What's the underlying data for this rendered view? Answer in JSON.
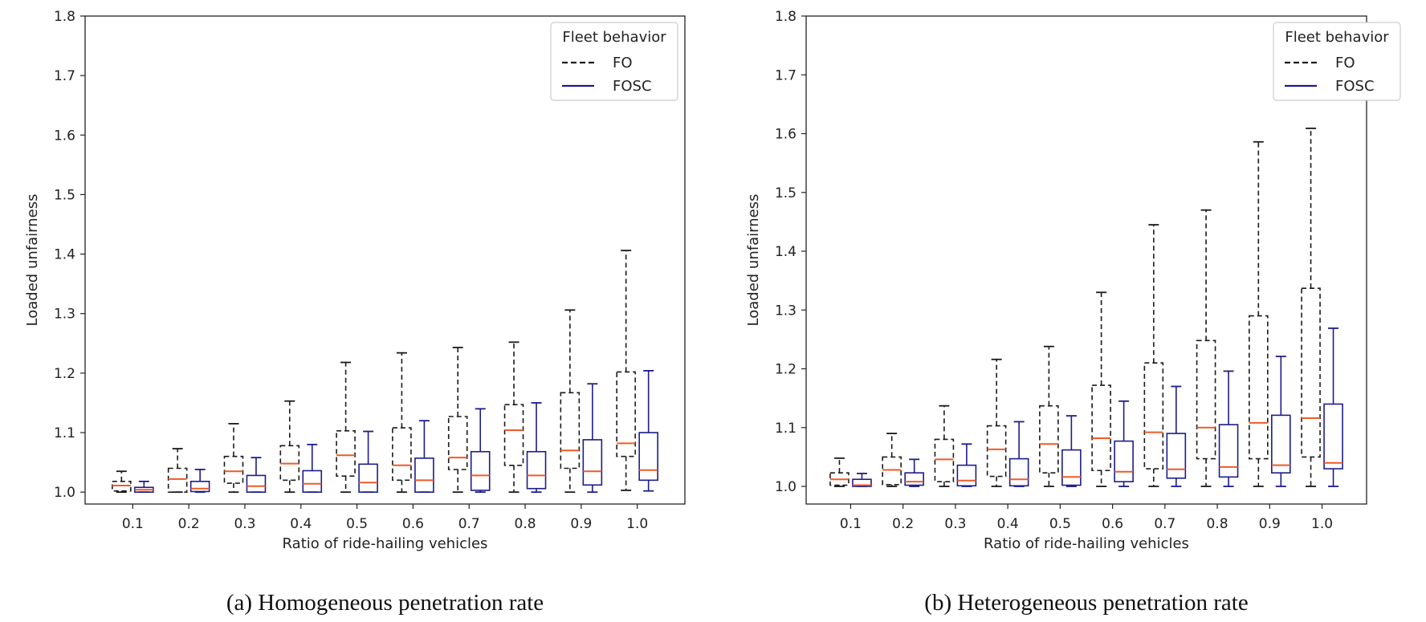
{
  "chart_data": [
    {
      "type": "boxplot",
      "caption": "(a) Homogeneous penetration rate",
      "xlabel": "Ratio of ride-hailing vehicles",
      "ylabel": "Loaded unfairness",
      "ylim": [
        0.98,
        1.8
      ],
      "yticks": [
        "1.0",
        "1.1",
        "1.2",
        "1.3",
        "1.4",
        "1.5",
        "1.6",
        "1.7",
        "1.8"
      ],
      "categories": [
        "0.1",
        "0.2",
        "0.3",
        "0.4",
        "0.5",
        "0.6",
        "0.7",
        "0.8",
        "0.9",
        "1.0"
      ],
      "legend": {
        "title": "Fleet behavior",
        "placement": "top-right"
      },
      "series": [
        {
          "name": "FO",
          "style": "dashed",
          "color": "#1a1a1a",
          "median_color": "#f05a28",
          "boxes": [
            {
              "whislo": 1.0,
              "q1": 1.002,
              "med": 1.011,
              "q3": 1.018,
              "whishi": 1.035
            },
            {
              "whislo": 1.0,
              "q1": 1.0,
              "med": 1.022,
              "q3": 1.04,
              "whishi": 1.073
            },
            {
              "whislo": 1.0,
              "q1": 1.015,
              "med": 1.035,
              "q3": 1.06,
              "whishi": 1.115
            },
            {
              "whislo": 1.0,
              "q1": 1.02,
              "med": 1.048,
              "q3": 1.078,
              "whishi": 1.153
            },
            {
              "whislo": 1.0,
              "q1": 1.027,
              "med": 1.062,
              "q3": 1.103,
              "whishi": 1.218
            },
            {
              "whislo": 1.0,
              "q1": 1.02,
              "med": 1.045,
              "q3": 1.108,
              "whishi": 1.234
            },
            {
              "whislo": 1.0,
              "q1": 1.038,
              "med": 1.058,
              "q3": 1.127,
              "whishi": 1.243
            },
            {
              "whislo": 1.0,
              "q1": 1.045,
              "med": 1.104,
              "q3": 1.147,
              "whishi": 1.252
            },
            {
              "whislo": 1.0,
              "q1": 1.04,
              "med": 1.07,
              "q3": 1.167,
              "whishi": 1.306
            },
            {
              "whislo": 1.003,
              "q1": 1.06,
              "med": 1.082,
              "q3": 1.202,
              "whishi": 1.406
            }
          ]
        },
        {
          "name": "FOSC",
          "style": "solid",
          "color": "#1c1c8c",
          "median_color": "#f05a28",
          "boxes": [
            {
              "whislo": 1.0,
              "q1": 1.0,
              "med": 1.004,
              "q3": 1.008,
              "whishi": 1.018
            },
            {
              "whislo": 1.0,
              "q1": 1.001,
              "med": 1.006,
              "q3": 1.018,
              "whishi": 1.038
            },
            {
              "whislo": 1.0,
              "q1": 1.0,
              "med": 1.01,
              "q3": 1.028,
              "whishi": 1.058
            },
            {
              "whislo": 1.0,
              "q1": 1.0,
              "med": 1.014,
              "q3": 1.036,
              "whishi": 1.08
            },
            {
              "whislo": 1.0,
              "q1": 1.0,
              "med": 1.016,
              "q3": 1.047,
              "whishi": 1.102
            },
            {
              "whislo": 1.0,
              "q1": 1.0,
              "med": 1.02,
              "q3": 1.057,
              "whishi": 1.12
            },
            {
              "whislo": 1.0,
              "q1": 1.003,
              "med": 1.028,
              "q3": 1.068,
              "whishi": 1.14
            },
            {
              "whislo": 1.0,
              "q1": 1.006,
              "med": 1.028,
              "q3": 1.068,
              "whishi": 1.15
            },
            {
              "whislo": 1.0,
              "q1": 1.012,
              "med": 1.035,
              "q3": 1.088,
              "whishi": 1.182
            },
            {
              "whislo": 1.002,
              "q1": 1.02,
              "med": 1.037,
              "q3": 1.1,
              "whishi": 1.204
            }
          ]
        }
      ]
    },
    {
      "type": "boxplot",
      "caption": "(b) Heterogeneous penetration rate",
      "xlabel": "Ratio of ride-hailing vehicles",
      "ylabel": "Loaded unfairness",
      "ylim": [
        0.97,
        1.8
      ],
      "yticks": [
        "1.0",
        "1.1",
        "1.2",
        "1.3",
        "1.4",
        "1.5",
        "1.6",
        "1.7",
        "1.8"
      ],
      "categories": [
        "0.1",
        "0.2",
        "0.3",
        "0.4",
        "0.5",
        "0.6",
        "0.7",
        "0.8",
        "0.9",
        "1.0"
      ],
      "legend": {
        "title": "Fleet behavior",
        "placement": "top-right"
      },
      "series": [
        {
          "name": "FO",
          "style": "dashed",
          "color": "#1a1a1a",
          "median_color": "#f05a28",
          "boxes": [
            {
              "whislo": 1.0,
              "q1": 1.002,
              "med": 1.012,
              "q3": 1.023,
              "whishi": 1.048
            },
            {
              "whislo": 1.0,
              "q1": 1.003,
              "med": 1.028,
              "q3": 1.05,
              "whishi": 1.09
            },
            {
              "whislo": 1.0,
              "q1": 1.008,
              "med": 1.046,
              "q3": 1.08,
              "whishi": 1.137
            },
            {
              "whislo": 1.0,
              "q1": 1.017,
              "med": 1.063,
              "q3": 1.103,
              "whishi": 1.216
            },
            {
              "whislo": 1.0,
              "q1": 1.023,
              "med": 1.072,
              "q3": 1.137,
              "whishi": 1.238
            },
            {
              "whislo": 1.0,
              "q1": 1.027,
              "med": 1.082,
              "q3": 1.172,
              "whishi": 1.33
            },
            {
              "whislo": 1.0,
              "q1": 1.03,
              "med": 1.092,
              "q3": 1.21,
              "whishi": 1.445
            },
            {
              "whislo": 1.0,
              "q1": 1.047,
              "med": 1.1,
              "q3": 1.248,
              "whishi": 1.47
            },
            {
              "whislo": 1.0,
              "q1": 1.047,
              "med": 1.108,
              "q3": 1.29,
              "whishi": 1.586
            },
            {
              "whislo": 1.0,
              "q1": 1.05,
              "med": 1.116,
              "q3": 1.337,
              "whishi": 1.609
            }
          ]
        },
        {
          "name": "FOSC",
          "style": "solid",
          "color": "#1c1c8c",
          "median_color": "#f05a28",
          "boxes": [
            {
              "whislo": 1.0,
              "q1": 1.0,
              "med": 1.002,
              "q3": 1.012,
              "whishi": 1.022
            },
            {
              "whislo": 1.0,
              "q1": 1.002,
              "med": 1.008,
              "q3": 1.023,
              "whishi": 1.046
            },
            {
              "whislo": 1.0,
              "q1": 1.001,
              "med": 1.01,
              "q3": 1.036,
              "whishi": 1.072
            },
            {
              "whislo": 1.0,
              "q1": 1.001,
              "med": 1.012,
              "q3": 1.047,
              "whishi": 1.11
            },
            {
              "whislo": 1.0,
              "q1": 1.002,
              "med": 1.016,
              "q3": 1.062,
              "whishi": 1.12
            },
            {
              "whislo": 1.0,
              "q1": 1.008,
              "med": 1.025,
              "q3": 1.077,
              "whishi": 1.145
            },
            {
              "whislo": 1.0,
              "q1": 1.014,
              "med": 1.029,
              "q3": 1.09,
              "whishi": 1.17
            },
            {
              "whislo": 1.0,
              "q1": 1.016,
              "med": 1.033,
              "q3": 1.105,
              "whishi": 1.196
            },
            {
              "whislo": 1.0,
              "q1": 1.023,
              "med": 1.036,
              "q3": 1.121,
              "whishi": 1.221
            },
            {
              "whislo": 1.0,
              "q1": 1.03,
              "med": 1.04,
              "q3": 1.14,
              "whishi": 1.269
            }
          ]
        }
      ]
    }
  ]
}
